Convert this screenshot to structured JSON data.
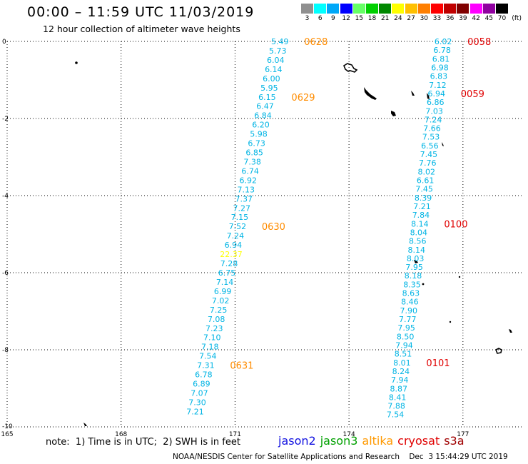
{
  "header": {
    "title": "00:00 – 11:59 UTC 11/03/2019",
    "subtitle": "12 hour collection of altimeter wave heights"
  },
  "color_scale": {
    "unit": "(ft)",
    "bins": [
      {
        "label": "3",
        "color": "#909090"
      },
      {
        "label": "6",
        "color": "#00ffff"
      },
      {
        "label": "9",
        "color": "#00a8f8"
      },
      {
        "label": "12",
        "color": "#0000ff"
      },
      {
        "label": "15",
        "color": "#66ff66"
      },
      {
        "label": "18",
        "color": "#00d000"
      },
      {
        "label": "21",
        "color": "#008800"
      },
      {
        "label": "24",
        "color": "#ffff00"
      },
      {
        "label": "27",
        "color": "#ffc000"
      },
      {
        "label": "30",
        "color": "#ff7f00"
      },
      {
        "label": "33",
        "color": "#ff0000"
      },
      {
        "label": "36",
        "color": "#c00000"
      },
      {
        "label": "39",
        "color": "#800000"
      },
      {
        "label": "42",
        "color": "#ff00ff"
      },
      {
        "label": "45",
        "color": "#9000a0"
      },
      {
        "label": "70",
        "color": "#000000"
      }
    ]
  },
  "axes": {
    "y_ticks": [
      "0",
      "-2",
      "-4",
      "-6",
      "-8",
      "-10"
    ],
    "x_ticks": [
      "165",
      "168",
      "171",
      "174",
      "177"
    ],
    "lon_range": [
      165,
      178.6
    ],
    "lat_range": [
      -10,
      0
    ]
  },
  "tracks": [
    {
      "name": "left-track",
      "start": [
        172.18,
        0.0
      ],
      "end": [
        169.95,
        -9.6
      ],
      "values": [
        "5.49",
        "5.73",
        "6.04",
        "6.14",
        "6.00",
        "5.95",
        "6.15",
        "6.47",
        "6.84",
        "6.20",
        "5.98",
        "6.73",
        "6.85",
        "7.38",
        "6.74",
        "6.92",
        "7.13",
        "7.37",
        "7.27",
        "7.15",
        "7.52",
        "7.24",
        "6.94",
        "22.37",
        "7.28",
        "6.75",
        "7.14",
        "6.99",
        "7.02",
        "7.25",
        "7.08",
        "7.23",
        "7.10",
        "7.18",
        "7.54",
        "7.31",
        "6.78",
        "6.89",
        "7.07",
        "7.30",
        "7.21"
      ],
      "highlight_index": 23,
      "highlight_color": "#ffff00",
      "value_color": "#00b4e4",
      "time_labels": [
        {
          "index": 0,
          "text": "0628"
        },
        {
          "index": 6,
          "text": "0629"
        },
        {
          "index": 20,
          "text": "0630"
        },
        {
          "index": 35,
          "text": "0631"
        }
      ],
      "time_color": "#ff8c00"
    },
    {
      "name": "right-track",
      "start": [
        176.48,
        0.0
      ],
      "end": [
        175.22,
        -9.68
      ],
      "values": [
        "6.02",
        "6.78",
        "6.81",
        "6.98",
        "6.83",
        "7.12",
        "6.94",
        "6.86",
        "7.03",
        "7.24",
        "7.66",
        "7.53",
        "6.56",
        "7.45",
        "7.76",
        "8.02",
        "6.61",
        "7.45",
        "8.39",
        "7.21",
        "7.84",
        "8.14",
        "8.04",
        "8.56",
        "8.14",
        "8.03",
        "7.95",
        "8.18",
        "8.35",
        "8.63",
        "8.46",
        "7.90",
        "7.77",
        "7.95",
        "8.50",
        "7.94",
        "8.51",
        "8.01",
        "8.24",
        "7.94",
        "8.87",
        "8.41",
        "7.88",
        "7.54"
      ],
      "value_color": "#00b4e4",
      "time_labels": [
        {
          "index": 0,
          "text": "0058"
        },
        {
          "index": 6,
          "text": "0059"
        },
        {
          "index": 21,
          "text": "0100"
        },
        {
          "index": 37,
          "text": "0101"
        }
      ],
      "time_color": "#e00000"
    }
  ],
  "footer": {
    "note": "note:  1) Time is in UTC;  2) SWH is in feet",
    "satellites": [
      {
        "name": "jason2",
        "color": "#1010e0"
      },
      {
        "name": "jason3",
        "color": "#00a000"
      },
      {
        "name": "altika",
        "color": "#ff9900"
      },
      {
        "name": "cryosat",
        "color": "#e00000"
      },
      {
        "name": "s3a",
        "color": "#a00000"
      }
    ],
    "credit": "NOAA/NESDIS Center for Satellite Applications and Research    Dec  3 15:44:29 UTC 2019"
  }
}
